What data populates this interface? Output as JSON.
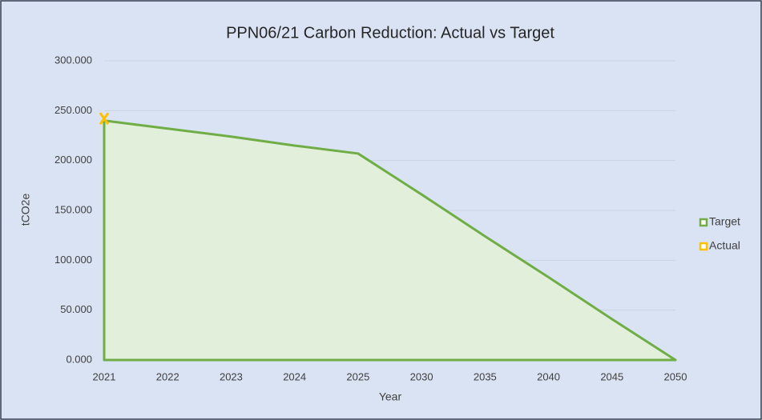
{
  "chart_data": {
    "type": "area",
    "title": "PPN06/21 Carbon Reduction: Actual vs Target",
    "x_label": "Year",
    "y_label": "tCO2e",
    "categories": [
      "2021",
      "2022",
      "2023",
      "2024",
      "2025",
      "2030",
      "2035",
      "2040",
      "2045",
      "2050"
    ],
    "series": [
      {
        "name": "Target",
        "color": "#70ad47",
        "fill": "#e2efda",
        "values": [
          240,
          232,
          224,
          215,
          207,
          166,
          124,
          83,
          41,
          0
        ]
      },
      {
        "name": "Actual",
        "color": "#ffc000",
        "values": [
          242,
          null,
          null,
          null,
          null,
          null,
          null,
          null,
          null,
          null
        ]
      }
    ],
    "ylim": [
      0,
      300
    ],
    "yticks": [
      {
        "value": 0,
        "label": "0.000"
      },
      {
        "value": 50,
        "label": "50.000"
      },
      {
        "value": 100,
        "label": "100.000"
      },
      {
        "value": 150,
        "label": "150.000"
      },
      {
        "value": 200,
        "label": "200.000"
      },
      {
        "value": 250,
        "label": "250.000"
      },
      {
        "value": 300,
        "label": "300.000"
      }
    ],
    "grid": true,
    "legend": "right"
  }
}
